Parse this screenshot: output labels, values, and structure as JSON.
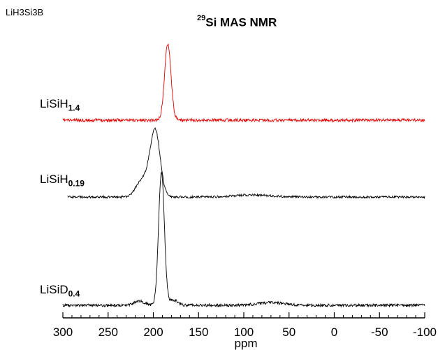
{
  "corner_label": "LiH3Si3B",
  "title": {
    "prefix": "29",
    "text": "Si MAS NMR"
  },
  "chart_data": {
    "type": "line",
    "title": "29Si MAS NMR",
    "xlabel": "ppm",
    "ylabel": "",
    "x_range": [
      300,
      -100
    ],
    "x_reversed": true,
    "xticks": [
      300,
      250,
      200,
      150,
      100,
      50,
      0,
      -50,
      -100
    ],
    "xtick_labels": [
      "300",
      "250",
      "200",
      "150",
      "100",
      "50",
      "0",
      "-50",
      "-100"
    ],
    "y_axis_shown": false,
    "grid": false,
    "series": [
      {
        "name": "LiSiH1.4",
        "label_main": "LiSiH",
        "label_sub": "1.4",
        "color": "#e00000",
        "peaks": [
          {
            "position_ppm": 184,
            "relative_height": 1.0,
            "width_ppm": 3.5
          }
        ]
      },
      {
        "name": "LiSiH0.19",
        "label_main": "LiSiH",
        "label_sub": "0.19",
        "color": "#000000",
        "peaks": [
          {
            "position_ppm": 198,
            "relative_height": 0.95,
            "width_ppm": 5.5
          },
          {
            "position_ppm": 212,
            "relative_height": 0.25,
            "width_ppm": 7
          },
          {
            "position_ppm": 90,
            "relative_height": 0.03,
            "width_ppm": 20
          }
        ]
      },
      {
        "name": "LiSiD0.4",
        "label_main": "LiSiD",
        "label_sub": "0.4",
        "color": "#000000",
        "peaks": [
          {
            "position_ppm": 191,
            "relative_height": 1.0,
            "width_ppm": 3.2
          },
          {
            "position_ppm": 178,
            "relative_height": 0.04,
            "width_ppm": 5
          },
          {
            "position_ppm": 215,
            "relative_height": 0.03,
            "width_ppm": 6
          },
          {
            "position_ppm": 70,
            "relative_height": 0.02,
            "width_ppm": 15
          }
        ]
      }
    ]
  }
}
